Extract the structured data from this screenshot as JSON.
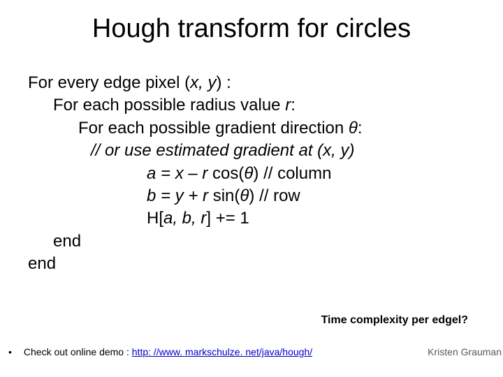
{
  "title": "Hough transform for circles",
  "lines": {
    "a": "For every edge pixel (",
    "a_xy": "x, y",
    "a2": ") :",
    "b": "For each possible radius value ",
    "b_r": "r",
    "b2": ":",
    "c": "For each possible gradient direction ",
    "c_th": "θ",
    "c2": ":",
    "d": "// or use estimated gradient at (x, y)",
    "e1": "a = x – r ",
    "e2": "cos(",
    "e3": "θ",
    "e4": ") // column",
    "f1": "b = y + r ",
    "f2": "sin(",
    "f3": "θ",
    "f4": ")  // row",
    "g1": "H[",
    "g2": "a, b, r",
    "g3": "] += 1",
    "end1": "end",
    "end2": "end"
  },
  "complexity": "Time complexity per edgel?",
  "footer_prefix": "Check out online demo : ",
  "footer_link": "http: //www. markschulze. net/java/hough/",
  "credit": "Kristen Grauman",
  "colors": {
    "bg": "#ffffff",
    "text": "#000000",
    "link": "#0000cc",
    "credit": "#595959"
  }
}
